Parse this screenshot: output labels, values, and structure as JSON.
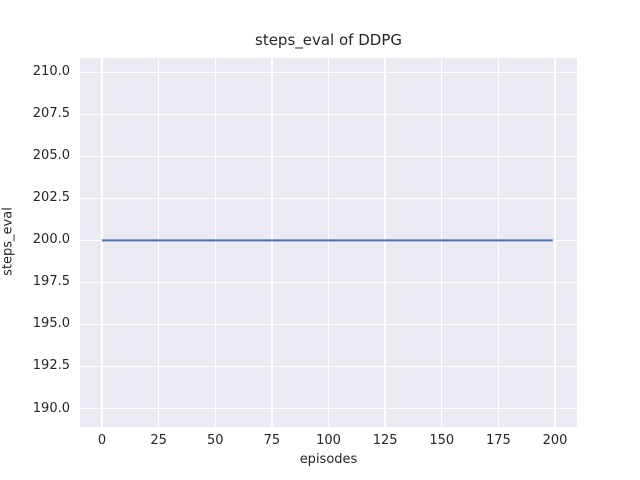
{
  "chart_data": {
    "type": "line",
    "title": "steps_eval of DDPG",
    "xlabel": "episodes",
    "ylabel": "steps_eval",
    "x_tick_values": [
      0,
      25,
      50,
      75,
      100,
      125,
      150,
      175,
      200
    ],
    "x_tick_labels": [
      "0",
      "25",
      "50",
      "75",
      "100",
      "125",
      "150",
      "175",
      "200"
    ],
    "y_tick_values": [
      190.0,
      192.5,
      195.0,
      197.5,
      200.0,
      202.5,
      205.0,
      207.5,
      210.0
    ],
    "y_tick_labels": [
      "190.0",
      "192.5",
      "195.0",
      "197.5",
      "200.0",
      "202.5",
      "205.0",
      "207.5",
      "210.0"
    ],
    "xlim": [
      -9.7,
      209.7
    ],
    "ylim": [
      188.9,
      210.85
    ],
    "grid": true,
    "legend": null,
    "series": [
      {
        "name": "steps_eval",
        "color": "#4c72b0",
        "line_width": 2,
        "x": [
          0,
          199
        ],
        "y": [
          200.0,
          200.0
        ]
      }
    ],
    "colors": {
      "figure_background": "#ffffff",
      "axes_background": "#eaeaf2",
      "grid": "#ffffff",
      "text": "#262626"
    }
  }
}
